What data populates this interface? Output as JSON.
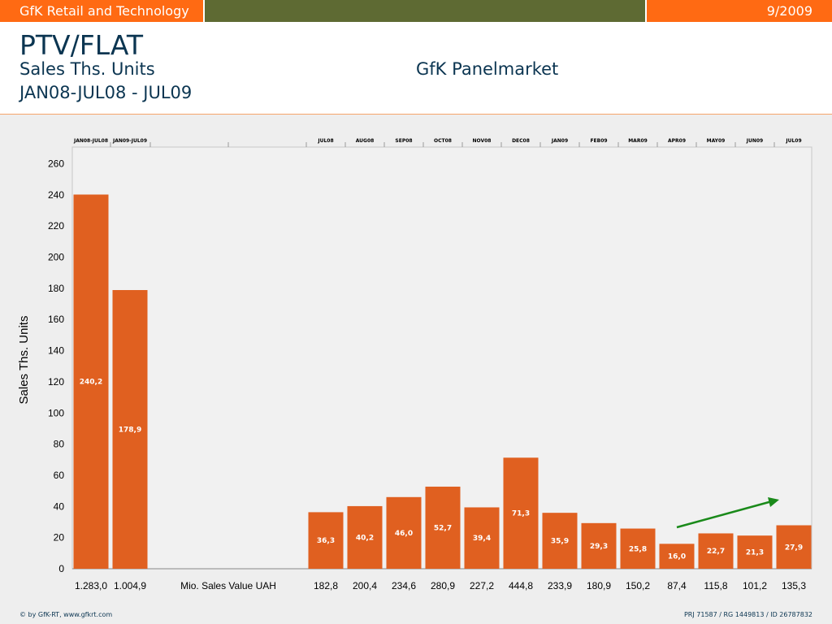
{
  "header": {
    "brand": "GfK Retail and Technology",
    "date": "9/2009",
    "title": "PTV/FLAT",
    "subtitle": "Sales Ths. Units",
    "period": "JAN08-JUL08 - JUL09",
    "panel": "GfK Panelmarket"
  },
  "footer": {
    "left": "© by GfK-RT, www.gfkrt.com",
    "right": "PRJ 71587 / RG 1449813 / ID 26787832"
  },
  "colors": {
    "bar": "#e06020",
    "trend_arrow": "#1a8a1a",
    "brand_orange": "#ff6a13",
    "brand_olive": "#5e6a33"
  },
  "chart_data": {
    "type": "bar",
    "ylabel": "Sales Ths. Units",
    "ylim": [
      0,
      260
    ],
    "yticks": [
      0,
      20,
      40,
      60,
      80,
      100,
      120,
      140,
      160,
      180,
      200,
      220,
      240,
      260
    ],
    "grid": false,
    "middle_label": "Mio. Sales Value UAH",
    "categories": [
      "JAN08-JUL08",
      "JAN09-JUL09",
      "JUL08",
      "AUG08",
      "SEP08",
      "OCT08",
      "NOV08",
      "DEC08",
      "JAN09",
      "FEB09",
      "MAR09",
      "APR09",
      "MAY09",
      "JUN09",
      "JUL09"
    ],
    "values": [
      240.2,
      178.9,
      36.3,
      40.2,
      46.0,
      52.7,
      39.4,
      71.3,
      35.9,
      29.3,
      25.8,
      16.0,
      22.7,
      21.3,
      27.9
    ],
    "value_labels": [
      "240,2",
      "178,9",
      "36,3",
      "40,2",
      "46,0",
      "52,7",
      "39,4",
      "71,3",
      "35,9",
      "29,3",
      "25,8",
      "16,0",
      "22,7",
      "21,3",
      "27,9"
    ],
    "sales_value": [
      "1.283,0",
      "1.004,9",
      "182,8",
      "200,4",
      "234,6",
      "280,9",
      "227,2",
      "444,8",
      "233,9",
      "180,9",
      "150,2",
      "87,4",
      "115,8",
      "101,2",
      "135,3"
    ]
  }
}
